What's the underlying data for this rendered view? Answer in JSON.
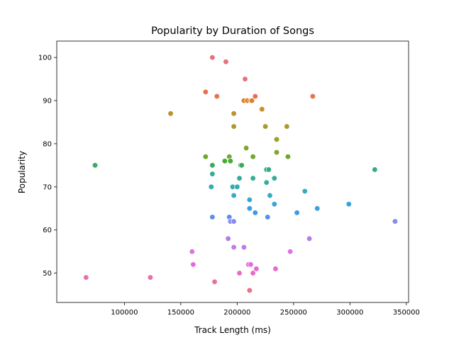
{
  "chart_data": {
    "type": "scatter",
    "title": "Popularity by Duration of Songs",
    "xlabel": "Track Length (ms)",
    "ylabel": "Popularity",
    "xlim": [
      40000,
      352000
    ],
    "ylim": [
      43.2,
      103.8
    ],
    "xticks": [
      100000,
      150000,
      200000,
      250000,
      300000,
      350000
    ],
    "yticks": [
      50,
      60,
      70,
      80,
      90,
      100
    ],
    "grid": false,
    "points": [
      {
        "x": 178000,
        "y": 100,
        "color": "#e8717b"
      },
      {
        "x": 190000,
        "y": 99,
        "color": "#e8717b"
      },
      {
        "x": 207000,
        "y": 95,
        "color": "#e8717b"
      },
      {
        "x": 172000,
        "y": 92,
        "color": "#e8724e"
      },
      {
        "x": 182000,
        "y": 91,
        "color": "#e8724e"
      },
      {
        "x": 216000,
        "y": 91,
        "color": "#e8724e"
      },
      {
        "x": 267000,
        "y": 91,
        "color": "#e8724e"
      },
      {
        "x": 206000,
        "y": 90,
        "color": "#d9822e"
      },
      {
        "x": 209000,
        "y": 90,
        "color": "#d9822e"
      },
      {
        "x": 212000,
        "y": 90,
        "color": "#d9822e"
      },
      {
        "x": 213000,
        "y": 90,
        "color": "#d9822e"
      },
      {
        "x": 222000,
        "y": 88,
        "color": "#c98f2a"
      },
      {
        "x": 141000,
        "y": 87,
        "color": "#b9932a"
      },
      {
        "x": 197000,
        "y": 87,
        "color": "#b9932a"
      },
      {
        "x": 197000,
        "y": 84,
        "color": "#a99a2a"
      },
      {
        "x": 225000,
        "y": 84,
        "color": "#a99a2a"
      },
      {
        "x": 244000,
        "y": 84,
        "color": "#a99a2a"
      },
      {
        "x": 235000,
        "y": 81,
        "color": "#9aa02a"
      },
      {
        "x": 208000,
        "y": 79,
        "color": "#85a42c"
      },
      {
        "x": 235000,
        "y": 78,
        "color": "#85a42c"
      },
      {
        "x": 172000,
        "y": 77,
        "color": "#72a72d"
      },
      {
        "x": 193000,
        "y": 77,
        "color": "#72a72d"
      },
      {
        "x": 214000,
        "y": 77,
        "color": "#72a72d"
      },
      {
        "x": 245000,
        "y": 77,
        "color": "#72a72d"
      },
      {
        "x": 189000,
        "y": 76,
        "color": "#45ab35"
      },
      {
        "x": 194000,
        "y": 76,
        "color": "#45ab35"
      },
      {
        "x": 74000,
        "y": 75,
        "color": "#3bab62"
      },
      {
        "x": 178000,
        "y": 75,
        "color": "#3bab62"
      },
      {
        "x": 203000,
        "y": 75,
        "color": "#3bab62"
      },
      {
        "x": 204000,
        "y": 75,
        "color": "#3bab62"
      },
      {
        "x": 226000,
        "y": 74,
        "color": "#38ac7c"
      },
      {
        "x": 228000,
        "y": 74,
        "color": "#38ac7c"
      },
      {
        "x": 322000,
        "y": 74,
        "color": "#38ac7c"
      },
      {
        "x": 178000,
        "y": 73,
        "color": "#36ad8e"
      },
      {
        "x": 202000,
        "y": 72,
        "color": "#36ad9a"
      },
      {
        "x": 214000,
        "y": 72,
        "color": "#36ad9a"
      },
      {
        "x": 233000,
        "y": 72,
        "color": "#36ad9a"
      },
      {
        "x": 226000,
        "y": 71,
        "color": "#37aca5"
      },
      {
        "x": 177000,
        "y": 70,
        "color": "#38abaf"
      },
      {
        "x": 196000,
        "y": 70,
        "color": "#38abaf"
      },
      {
        "x": 200000,
        "y": 70,
        "color": "#38abaf"
      },
      {
        "x": 260000,
        "y": 69,
        "color": "#39aabc"
      },
      {
        "x": 197000,
        "y": 68,
        "color": "#3aa8c4"
      },
      {
        "x": 229000,
        "y": 68,
        "color": "#3aa8c4"
      },
      {
        "x": 211000,
        "y": 67,
        "color": "#3ba6cd"
      },
      {
        "x": 233000,
        "y": 66,
        "color": "#3ca4d6"
      },
      {
        "x": 299000,
        "y": 66,
        "color": "#3ca4d6"
      },
      {
        "x": 211000,
        "y": 65,
        "color": "#3d9fdf"
      },
      {
        "x": 271000,
        "y": 65,
        "color": "#3d9fdf"
      },
      {
        "x": 216000,
        "y": 64,
        "color": "#4099e5"
      },
      {
        "x": 253000,
        "y": 64,
        "color": "#4099e5"
      },
      {
        "x": 178000,
        "y": 63,
        "color": "#5a8ef0"
      },
      {
        "x": 193000,
        "y": 63,
        "color": "#5a8ef0"
      },
      {
        "x": 227000,
        "y": 63,
        "color": "#5a8ef0"
      },
      {
        "x": 194000,
        "y": 62,
        "color": "#8a8aee"
      },
      {
        "x": 197000,
        "y": 62,
        "color": "#8a8aee"
      },
      {
        "x": 340000,
        "y": 62,
        "color": "#8a8aee"
      },
      {
        "x": 264000,
        "y": 58,
        "color": "#b47de8"
      },
      {
        "x": 192000,
        "y": 58,
        "color": "#b47de8"
      },
      {
        "x": 197000,
        "y": 56,
        "color": "#c07be8"
      },
      {
        "x": 206000,
        "y": 56,
        "color": "#c07be8"
      },
      {
        "x": 160000,
        "y": 55,
        "color": "#db73e6"
      },
      {
        "x": 247000,
        "y": 55,
        "color": "#db73e6"
      },
      {
        "x": 161000,
        "y": 52,
        "color": "#e46ae0"
      },
      {
        "x": 210000,
        "y": 52,
        "color": "#e46ae0"
      },
      {
        "x": 212000,
        "y": 52,
        "color": "#e46ae0"
      },
      {
        "x": 217000,
        "y": 51,
        "color": "#e76bd0"
      },
      {
        "x": 234000,
        "y": 51,
        "color": "#e76bd0"
      },
      {
        "x": 202000,
        "y": 50,
        "color": "#e86cc3"
      },
      {
        "x": 214000,
        "y": 50,
        "color": "#e86cc3"
      },
      {
        "x": 66000,
        "y": 49,
        "color": "#e96fb0"
      },
      {
        "x": 123000,
        "y": 49,
        "color": "#e96fb0"
      },
      {
        "x": 180000,
        "y": 48,
        "color": "#e8709f"
      },
      {
        "x": 211000,
        "y": 46,
        "color": "#e8718c"
      }
    ]
  }
}
